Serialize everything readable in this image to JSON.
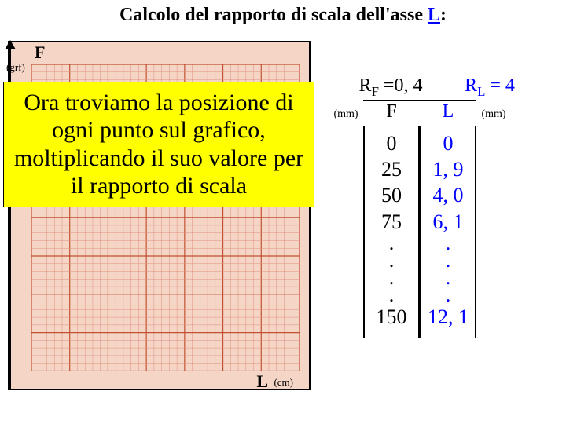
{
  "title_pre": "Calcolo del rapporto di scala dell'asse ",
  "title_L": "L",
  "title_post": ":",
  "graph": {
    "y_label": "F",
    "y_unit": "(grf)",
    "x_label": "L",
    "x_unit": "(cm)",
    "background": "#f5d5c5",
    "minor_color": "#e09080",
    "major_color": "#c05030",
    "major_count_x": 7,
    "major_count_y": 8,
    "minor_per_major": 5
  },
  "callout": "Ora troviamo la posizione di ogni punto sul grafico, moltiplicando il suo valore per il rapporto di scala",
  "rf_label": "R",
  "rf_sub": "F",
  "rf_val": " =0, 4",
  "rl_label": "R",
  "rl_sub": "L",
  "rl_val": " = 4",
  "mm": "(mm)",
  "col_F": "F",
  "col_L": "L",
  "rows_F": [
    "0",
    "25",
    "50",
    "75",
    ".",
    ".",
    ".",
    ".",
    "150"
  ],
  "rows_L": [
    "0",
    "1, 9",
    "4, 0",
    "6, 1",
    ".",
    ".",
    ".",
    ".",
    "12, 1"
  ]
}
